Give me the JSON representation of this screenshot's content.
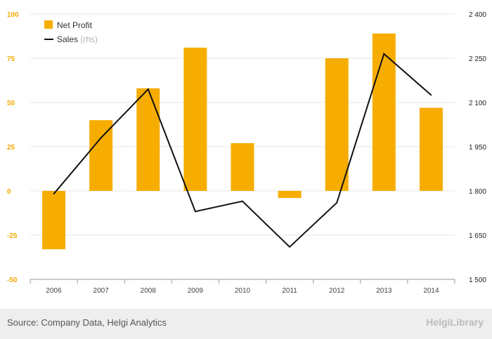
{
  "chart_data": {
    "type": "bar",
    "categories": [
      "2006",
      "2007",
      "2008",
      "2009",
      "2010",
      "2011",
      "2012",
      "2013",
      "2014"
    ],
    "series": [
      {
        "name": "Net Profit",
        "type": "bar",
        "axis": "left",
        "color": "#f6ad00",
        "values": [
          -33,
          40,
          58,
          81,
          27,
          -4,
          75,
          89,
          47
        ]
      },
      {
        "name": "Sales",
        "type": "line",
        "axis": "right",
        "color": "#111111",
        "values": [
          1790,
          1980,
          2145,
          1730,
          1765,
          1610,
          1760,
          2265,
          2125
        ]
      }
    ],
    "legend": {
      "position": "top-left",
      "items": [
        {
          "label": "Net Profit",
          "note": ""
        },
        {
          "label": "Sales",
          "note": "(rhs)"
        }
      ]
    },
    "y_left": {
      "min": -50,
      "max": 100,
      "ticks": [
        "100",
        "75",
        "50",
        "25",
        "0",
        "-25",
        "-50"
      ],
      "color": "#f2a900"
    },
    "y_right": {
      "min": 1500,
      "max": 2400,
      "ticks": [
        "2 400",
        "2 250",
        "2 100",
        "1 950",
        "1 800",
        "1 650",
        "1 500"
      ]
    },
    "grid": true
  },
  "footer": {
    "source": "Source: Company Data, Helgi Analytics",
    "brand": "HelgiLibrary"
  }
}
